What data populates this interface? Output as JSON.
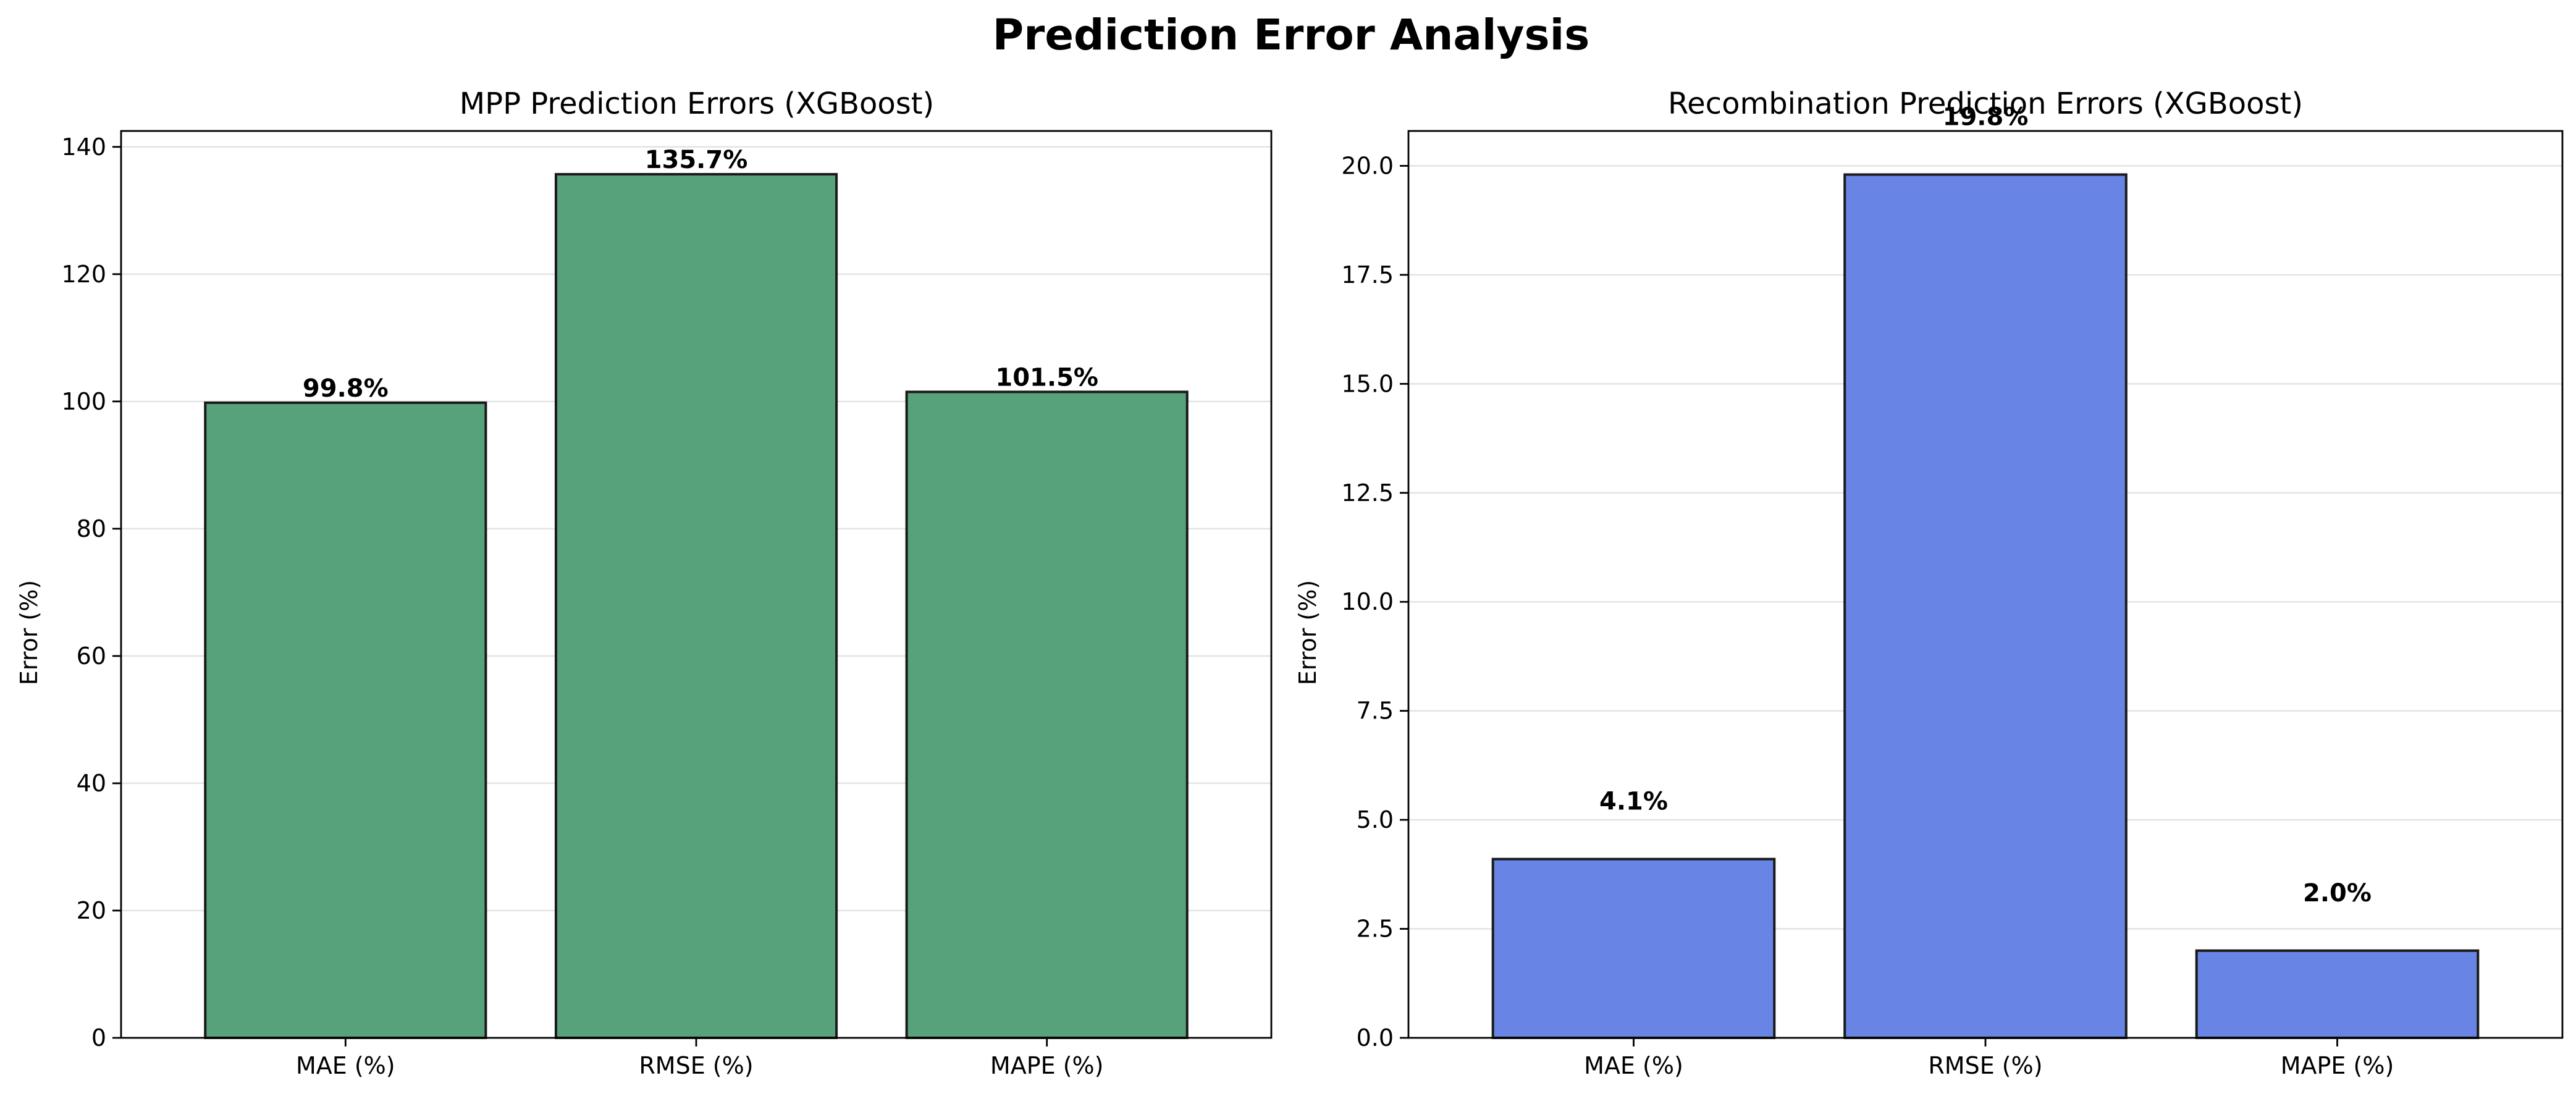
{
  "figure_title": "Prediction Error Analysis",
  "chart_data": [
    {
      "type": "bar",
      "title": "MPP Prediction Errors (XGBoost)",
      "xlabel": "",
      "ylabel": "Error (%)",
      "categories": [
        "MAE (%)",
        "RMSE (%)",
        "MAPE (%)"
      ],
      "values": [
        99.8,
        135.7,
        101.5
      ],
      "value_labels": [
        "99.8%",
        "135.7%",
        "101.5%"
      ],
      "ylim": [
        0,
        142.5
      ],
      "yticks": [
        0,
        20,
        40,
        60,
        80,
        100,
        120,
        140
      ],
      "ytick_labels": [
        "0",
        "20",
        "40",
        "60",
        "80",
        "100",
        "120",
        "140"
      ],
      "bar_color": "#57A27A",
      "grid": "y"
    },
    {
      "type": "bar",
      "title": "Recombination Prediction Errors (XGBoost)",
      "xlabel": "",
      "ylabel": "Error (%)",
      "categories": [
        "MAE (%)",
        "RMSE (%)",
        "MAPE (%)"
      ],
      "values": [
        4.1,
        19.8,
        2.0
      ],
      "value_labels": [
        "4.1%",
        "19.8%",
        "2.0%"
      ],
      "ylim": [
        0,
        20.8
      ],
      "yticks": [
        0,
        2.5,
        5,
        7.5,
        10,
        12.5,
        15,
        17.5,
        20
      ],
      "ytick_labels": [
        "0.0",
        "2.5",
        "5.0",
        "7.5",
        "10.0",
        "12.5",
        "15.0",
        "17.5",
        "20.0"
      ],
      "bar_color": "#6885E5",
      "grid": "y"
    }
  ]
}
